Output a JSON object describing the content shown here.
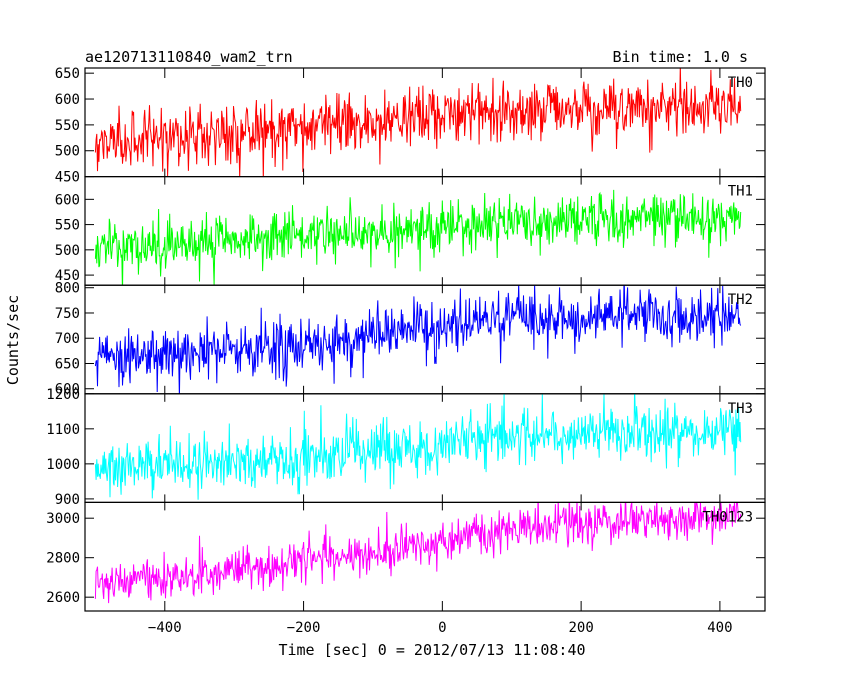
{
  "chart_data": {
    "type": "line",
    "title": "ae120713110840_wam2_trn",
    "bin_time_label": "Bin time: 1.0 s",
    "xlabel": "Time [sec] 0 = 2012/07/13 11:08:40",
    "ylabel": "Counts/sec",
    "xlim": [
      -515,
      465
    ],
    "x_ticks": [
      -400,
      -200,
      0,
      200,
      400
    ],
    "x_tick_labels": [
      "−400",
      "−200",
      "0",
      "200",
      "400"
    ],
    "x_range": [
      -500,
      430
    ],
    "bin_time": 1.0,
    "grid": false,
    "panels": [
      {
        "name": "TH0",
        "color": "#ff0000",
        "ylim": [
          450,
          660
        ],
        "y_ticks": [
          450,
          500,
          550,
          600,
          650
        ],
        "y_tick_labels": [
          "450",
          "500",
          "550",
          "600",
          "650"
        ],
        "trend": [
          [
            -500,
            515
          ],
          [
            -400,
            525
          ],
          [
            -300,
            535
          ],
          [
            -200,
            545
          ],
          [
            -100,
            555
          ],
          [
            0,
            570
          ],
          [
            100,
            580
          ],
          [
            200,
            580
          ],
          [
            300,
            585
          ],
          [
            430,
            585
          ]
        ],
        "scatter": 28,
        "peaks": [
          650,
          420
        ]
      },
      {
        "name": "TH1",
        "color": "#00ff00",
        "ylim": [
          430,
          645
        ],
        "y_ticks": [
          450,
          500,
          550,
          600
        ],
        "y_tick_labels": [
          "450",
          "500",
          "550",
          "600"
        ],
        "trend": [
          [
            -500,
            505
          ],
          [
            -400,
            510
          ],
          [
            -300,
            520
          ],
          [
            -200,
            525
          ],
          [
            -100,
            535
          ],
          [
            0,
            545
          ],
          [
            100,
            555
          ],
          [
            200,
            560
          ],
          [
            300,
            565
          ],
          [
            430,
            565
          ]
        ],
        "scatter": 24,
        "peaks": [
          632,
          445
        ]
      },
      {
        "name": "TH2",
        "color": "#0000ff",
        "ylim": [
          590,
          805
        ],
        "y_ticks": [
          600,
          650,
          700,
          750,
          800
        ],
        "y_tick_labels": [
          "600",
          "650",
          "700",
          "750",
          "800"
        ],
        "trend": [
          [
            -500,
            660
          ],
          [
            -400,
            668
          ],
          [
            -300,
            678
          ],
          [
            -200,
            690
          ],
          [
            -100,
            705
          ],
          [
            0,
            720
          ],
          [
            100,
            735
          ],
          [
            200,
            740
          ],
          [
            300,
            745
          ],
          [
            430,
            745
          ]
        ],
        "scatter": 28,
        "peaks": [
          805,
          590
        ]
      },
      {
        "name": "TH3",
        "color": "#00ffff",
        "ylim": [
          890,
          1200
        ],
        "y_ticks": [
          900,
          1000,
          1100,
          1200
        ],
        "y_tick_labels": [
          "900",
          "1000",
          "1100",
          "1200"
        ],
        "trend": [
          [
            -500,
            990
          ],
          [
            -400,
            1000
          ],
          [
            -300,
            1010
          ],
          [
            -200,
            1020
          ],
          [
            -100,
            1040
          ],
          [
            0,
            1060
          ],
          [
            100,
            1080
          ],
          [
            200,
            1085
          ],
          [
            300,
            1090
          ],
          [
            430,
            1095
          ]
        ],
        "scatter": 40,
        "peaks": [
          1200,
          890
        ]
      },
      {
        "name": "TH0123",
        "color": "#ff00ff",
        "ylim": [
          2530,
          3080
        ],
        "y_ticks": [
          2600,
          2800,
          3000
        ],
        "y_tick_labels": [
          "2600",
          "2800",
          "3000"
        ],
        "trend": [
          [
            -500,
            2670
          ],
          [
            -400,
            2700
          ],
          [
            -300,
            2740
          ],
          [
            -200,
            2790
          ],
          [
            -100,
            2830
          ],
          [
            0,
            2880
          ],
          [
            100,
            2950
          ],
          [
            200,
            2980
          ],
          [
            300,
            2990
          ],
          [
            430,
            3000
          ]
        ],
        "scatter": 50,
        "peaks": [
          3070,
          2560
        ]
      }
    ]
  }
}
